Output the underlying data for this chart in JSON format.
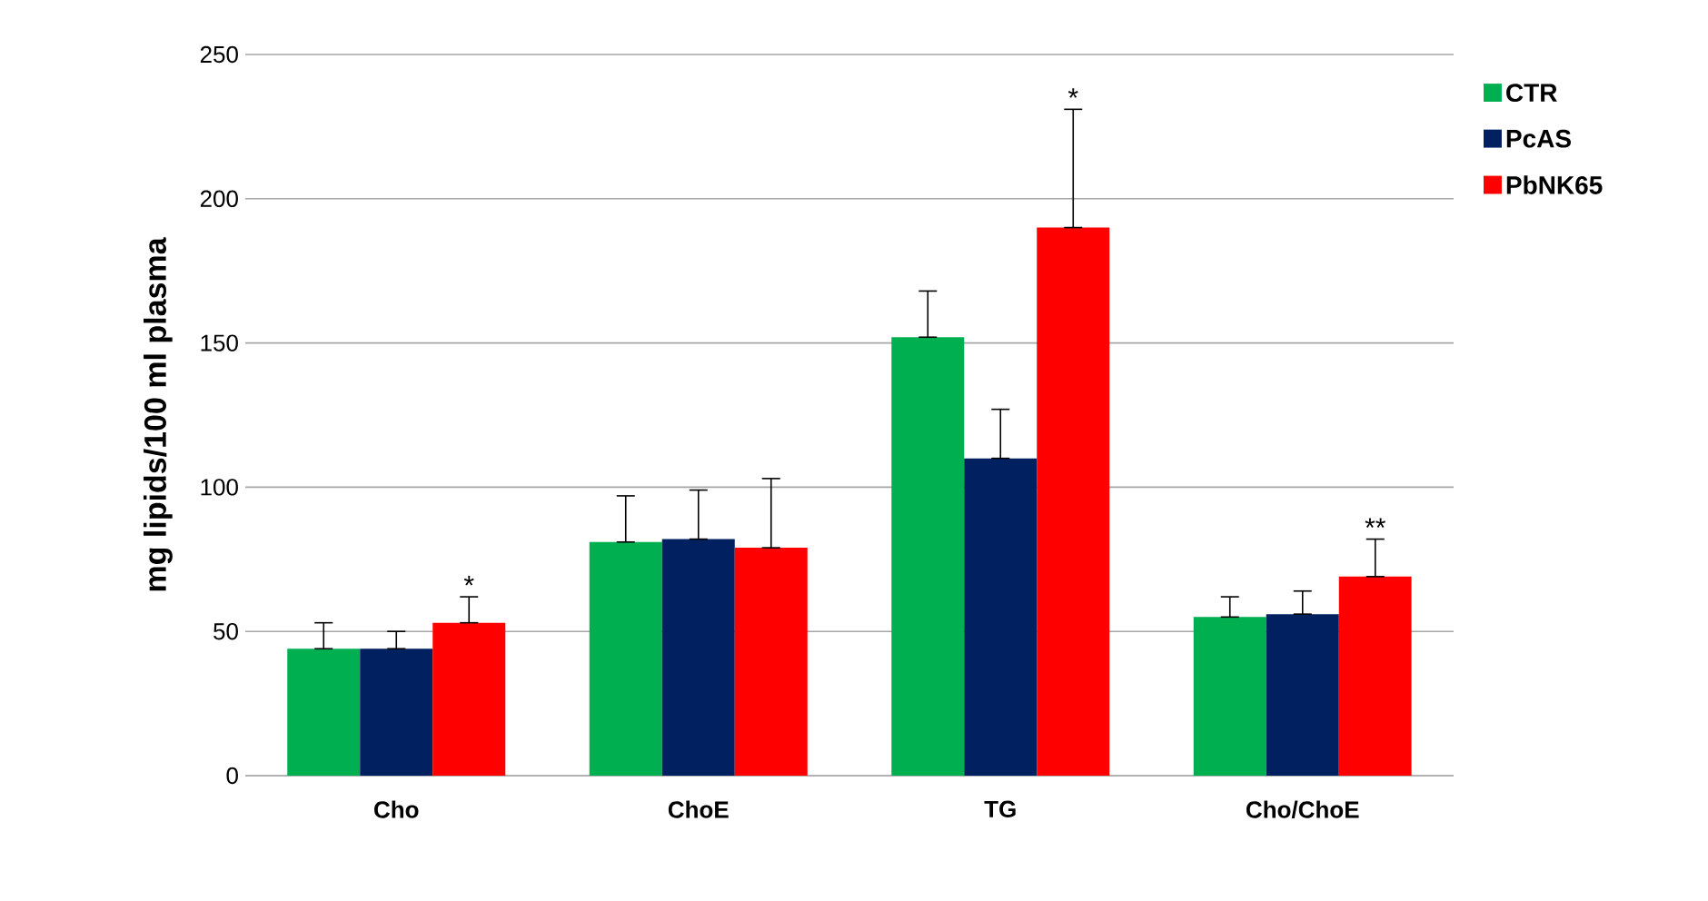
{
  "chart_data": {
    "type": "bar",
    "ylabel": "mg lipids/100 ml plasma",
    "categories": [
      "Cho",
      "ChoE",
      "TG",
      "Cho/ChoE"
    ],
    "series": [
      {
        "name": "CTR",
        "color": "#00b050",
        "values": [
          44,
          81,
          152,
          55
        ],
        "errors": [
          [
            44,
            53
          ],
          [
            81,
            97
          ],
          [
            152,
            168
          ],
          [
            55,
            62
          ]
        ]
      },
      {
        "name": "PcAS",
        "color": "#002060",
        "values": [
          44,
          82,
          110,
          56
        ],
        "errors": [
          [
            44,
            50
          ],
          [
            82,
            99
          ],
          [
            110,
            127
          ],
          [
            56,
            64
          ]
        ]
      },
      {
        "name": "PbNK65",
        "color": "#ff0000",
        "values": [
          53,
          79,
          190,
          69
        ],
        "errors": [
          [
            53,
            62
          ],
          [
            79,
            103
          ],
          [
            190,
            231
          ],
          [
            69,
            82
          ]
        ]
      }
    ],
    "ylim": [
      0,
      250
    ],
    "yticks": [
      0,
      50,
      100,
      150,
      200,
      250
    ],
    "grid": "y",
    "legend": "right",
    "annotations": [
      "*",
      "*",
      "**"
    ]
  }
}
